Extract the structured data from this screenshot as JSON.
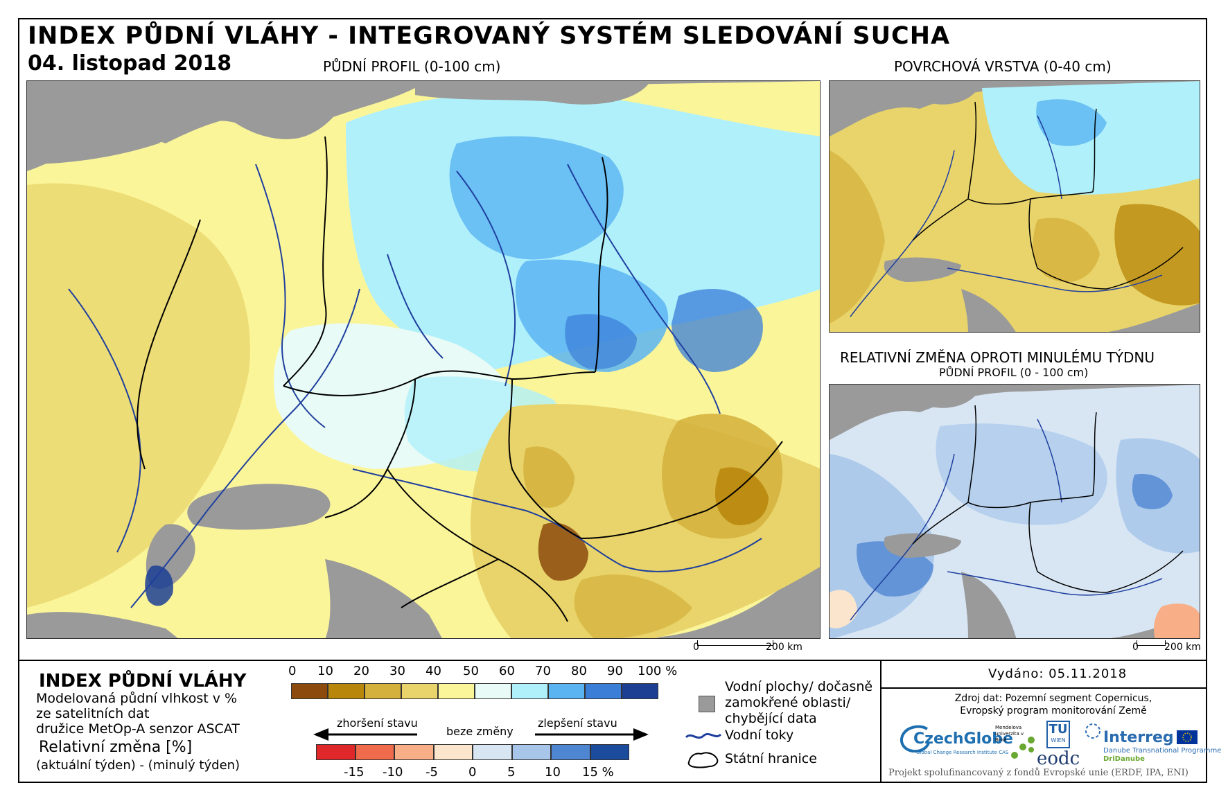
{
  "header": {
    "title": "INDEX PŮDNÍ VLÁHY - INTEGROVANÝ SYSTÉM SLEDOVÁNÍ SUCHA",
    "date": "04. listopad 2018"
  },
  "maps": {
    "main_title": "PŮDNÍ PROFIL (0-100 cm)",
    "surface_title": "POVRCHOVÁ VRSTVA (0-40 cm)",
    "change_title": "RELATIVNÍ ZMĚNA OPROTI MINULÉMU TÝDNU",
    "change_subtitle": "PŮDNÍ PROFIL (0 - 100 cm)",
    "scale_zero": "0",
    "scale_main_value": "200 km",
    "scale_small_value": "200 km"
  },
  "legend": {
    "title": "INDEX PŮDNÍ VLÁHY",
    "desc_line1": "Modelovaná půdní vlhkost v %",
    "desc_line2": "ze satelitních dat",
    "desc_line3": "družice MetOp-A senzor ASCAT",
    "change_title": "Relativní změna [%]",
    "change_desc": "(aktuální týden) - (minulý týden)",
    "index_ticks": [
      "0",
      "10",
      "20",
      "30",
      "40",
      "50",
      "60",
      "70",
      "80",
      "90",
      "100 %"
    ],
    "index_colors": [
      "#8c4a0c",
      "#b8860b",
      "#d4b03c",
      "#e8d46a",
      "#fbf59a",
      "#e9fbf6",
      "#b0f0fa",
      "#5ab4f2",
      "#3a7ed8",
      "#1c3f94"
    ],
    "worse_label": "zhoršení stavu",
    "nochange_label": "beze změny",
    "better_label": "zlepšení stavu",
    "change_ticks": [
      "-15",
      "-10",
      "-5",
      "0",
      "5",
      "10",
      "15 %"
    ],
    "change_colors": [
      "#e0282a",
      "#f06a4c",
      "#f8ae86",
      "#fbe5cc",
      "#d8e6f4",
      "#a8c6ea",
      "#4f86d2",
      "#1a4b9c"
    ],
    "water_label_1": "Vodní plochy/ dočasně",
    "water_label_2": "zamokřené oblasti/",
    "water_label_3": "chybějící data",
    "water_color": "#9a9a9a",
    "rivers_label": "Vodní toky",
    "borders_label": "Státní hranice",
    "river_color": "#1f3f9e"
  },
  "info": {
    "issued": "Vydáno: 05.11.2018",
    "source_line1": "Zdroj dat: Pozemní segment Copernicus,",
    "source_line2": "Evropský program monitorování Země",
    "project": "Projekt spolufinancovaný z fondů Evropské unie (ERDF, IPA, ENI)"
  },
  "logos": {
    "czechglobe": "CzechGlobe",
    "czechglobe_sub": "Global Change Research Institute CAS",
    "mendel": "Mendelova univerzita v Brně",
    "tu": "TU",
    "tu_sub": "WIEN",
    "eodc": "eodc",
    "interreg": "Interreg",
    "interreg_sub1": "Danube Transnational Programme",
    "interreg_sub2": "DriDanube"
  }
}
